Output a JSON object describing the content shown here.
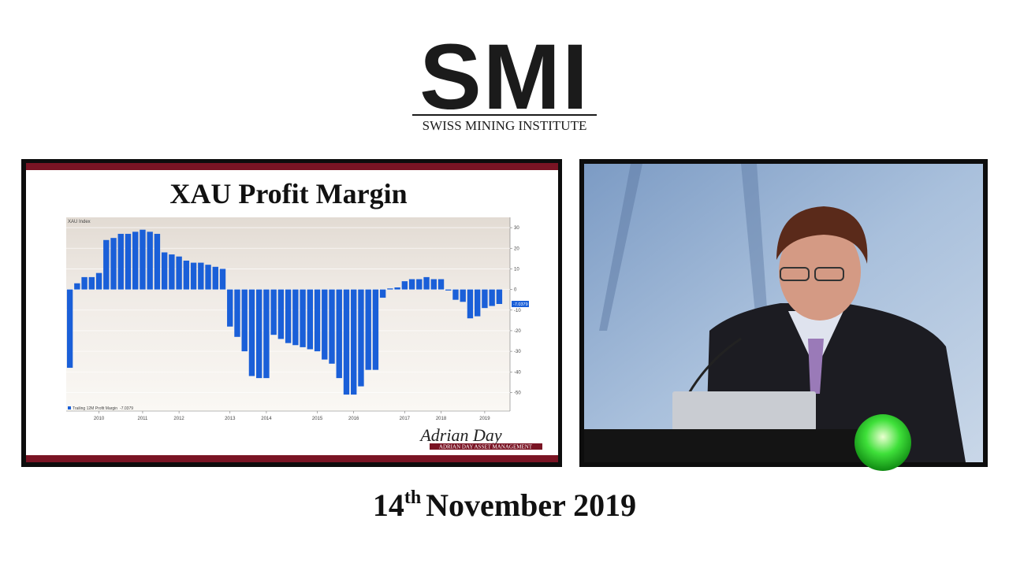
{
  "header": {
    "logo": "SMI",
    "tagline": "SWISS MINING INSTITUTE"
  },
  "chart_data": {
    "type": "bar",
    "title": "XAU Profit Margin",
    "subtitle": "XAU Index",
    "categories": [
      null,
      null,
      null,
      null,
      "2010",
      null,
      null,
      null,
      null,
      null,
      "2011",
      null,
      null,
      null,
      null,
      "2012",
      null,
      null,
      null,
      null,
      null,
      null,
      "2013",
      null,
      null,
      null,
      null,
      "2014",
      null,
      null,
      null,
      null,
      null,
      null,
      "2015",
      null,
      null,
      null,
      null,
      "2016",
      null,
      null,
      null,
      null,
      null,
      null,
      "2017",
      null,
      null,
      null,
      null,
      "2018",
      null,
      null,
      null,
      null,
      null,
      "2019",
      null,
      null
    ],
    "series": [
      {
        "name": "Trailing 12M Profit Margin",
        "color": "#1a5fd8",
        "values": [
          -38,
          3,
          6,
          6,
          8,
          24,
          25,
          27,
          27,
          28,
          29,
          28,
          27,
          18,
          17,
          16,
          14,
          13,
          13,
          12,
          11,
          10,
          -18,
          -23,
          -30,
          -42,
          -43,
          -43,
          -22,
          -24,
          -26,
          -27,
          -28,
          -29,
          -30,
          -34,
          -36,
          -43,
          -51,
          -51,
          -47,
          -39,
          -39,
          -4,
          0.5,
          1,
          4,
          5,
          5,
          6,
          5,
          5,
          -0.5,
          -5,
          -6,
          -14,
          -13,
          -9,
          -8,
          -7.0379
        ]
      }
    ],
    "ylim": [
      -59,
      35
    ],
    "yticks": [
      30,
      20,
      10,
      0,
      -10,
      -20,
      -30,
      -40,
      -50
    ],
    "grid": true
  },
  "signature": {
    "name": "Adrian Day",
    "company": "ADRIAN DAY ASSET MANAGEMENT"
  },
  "footer": {
    "day": "14",
    "suffix": "th",
    "month_year": "November 2019"
  }
}
